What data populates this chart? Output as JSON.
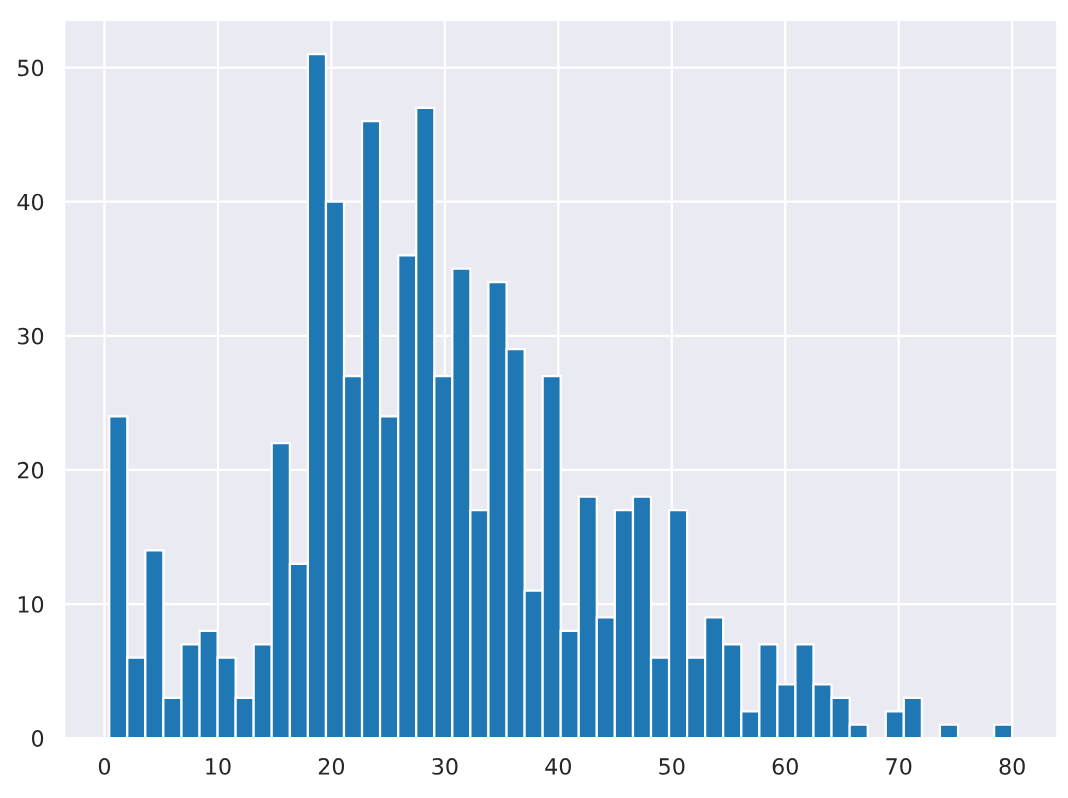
{
  "chart_data": {
    "type": "histogram",
    "color": "#1f77b4",
    "bins": [
      0.42,
      2.01,
      3.6,
      5.19,
      6.79,
      8.38,
      9.97,
      11.56,
      13.15,
      14.74,
      16.34,
      17.93,
      19.52,
      21.11,
      22.7,
      24.29,
      25.89,
      27.48,
      29.07,
      30.66,
      32.25,
      33.84,
      35.44,
      37.03,
      38.62,
      40.21,
      41.8,
      43.39,
      44.98,
      46.58,
      48.17,
      49.76,
      51.35,
      52.94,
      54.53,
      56.13,
      57.72,
      59.31,
      60.9,
      62.49,
      64.08,
      65.68,
      67.27,
      68.86,
      70.45,
      72.04,
      73.63,
      75.23,
      76.82,
      78.41,
      80
    ],
    "values": [
      24,
      6,
      14,
      3,
      7,
      8,
      6,
      3,
      7,
      22,
      13,
      51,
      40,
      27,
      46,
      24,
      36,
      47,
      27,
      35,
      17,
      34,
      29,
      11,
      27,
      8,
      18,
      9,
      17,
      18,
      6,
      17,
      6,
      9,
      7,
      2,
      7,
      4,
      7,
      4,
      3,
      1,
      0,
      2,
      3,
      0,
      1,
      0,
      0,
      1
    ],
    "xlim": [
      -3.56,
      83.98
    ],
    "ylim": [
      0,
      53.55
    ],
    "xticks": [
      0,
      10,
      20,
      30,
      40,
      50,
      60,
      70,
      80
    ],
    "yticks": [
      0,
      10,
      20,
      30,
      40,
      50
    ],
    "grid": true
  }
}
